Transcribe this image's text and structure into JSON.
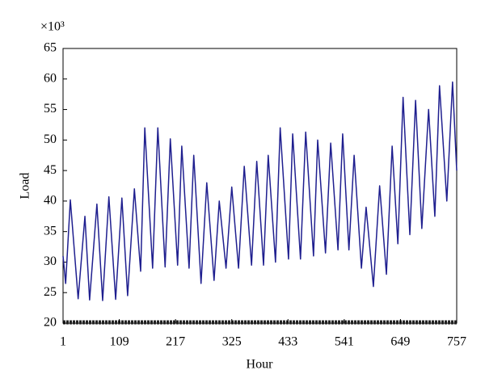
{
  "chart_data": {
    "type": "line",
    "multiplier_label": "×10³",
    "x_label": "Hour",
    "y_label": "Load",
    "xlim": [
      1,
      757
    ],
    "xticks": [
      1,
      109,
      217,
      325,
      433,
      541,
      649,
      757
    ],
    "ylim": [
      20,
      65
    ],
    "yticks": [
      20,
      25,
      30,
      35,
      40,
      45,
      50,
      55,
      60,
      65
    ],
    "grid": false,
    "series": [
      {
        "color": "#1f1f8f",
        "x": [
          1,
          6,
          15,
          30,
          43,
          52,
          66,
          77,
          89,
          102,
          114,
          125,
          138,
          150,
          158,
          173,
          183,
          197,
          207,
          221,
          229,
          243,
          252,
          266,
          277,
          291,
          301,
          314,
          325,
          338,
          349,
          363,
          373,
          386,
          395,
          409,
          418,
          434,
          442,
          457,
          467,
          482,
          490,
          505,
          515,
          529,
          538,
          550,
          560,
          574,
          583,
          597,
          609,
          622,
          633,
          644,
          654,
          667,
          678,
          690,
          703,
          715,
          724,
          738,
          749,
          757
        ],
        "values": [
          31,
          26.5,
          40.2,
          24,
          37.5,
          23.8,
          39.5,
          23.7,
          40.7,
          23.9,
          40.5,
          24.5,
          42,
          28.5,
          52,
          29,
          52,
          29.2,
          50.2,
          29.5,
          49,
          29,
          47.5,
          26.5,
          43,
          27,
          40,
          29,
          42.3,
          29,
          45.7,
          29.5,
          46.5,
          29.5,
          47.5,
          30,
          52,
          30.5,
          51,
          30.5,
          51.3,
          31,
          50,
          31.5,
          49.5,
          32,
          51,
          32,
          47.5,
          29,
          39,
          26,
          42.5,
          28,
          49,
          33,
          57,
          34.5,
          56.5,
          35.5,
          55,
          37.5,
          58.9,
          40,
          59.5,
          45
        ]
      }
    ]
  }
}
